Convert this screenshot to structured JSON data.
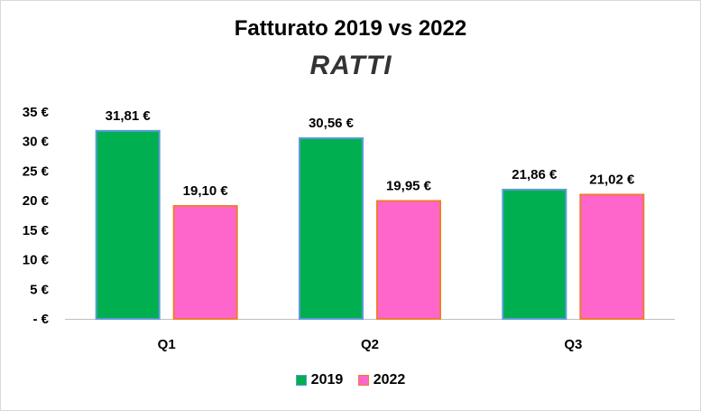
{
  "chart_data": {
    "type": "bar",
    "title": "Fatturato  2019 vs 2022",
    "logo_text": "RATTI",
    "categories": [
      "Q1",
      "Q2",
      "Q3"
    ],
    "series": [
      {
        "name": "2019",
        "values": [
          31.81,
          30.56,
          21.86
        ],
        "labels": [
          "31,81 €",
          "30,56 €",
          "21,86 €"
        ],
        "color": "#00b050",
        "border": "#5b9bd5"
      },
      {
        "name": "2022",
        "values": [
          19.1,
          19.95,
          21.02
        ],
        "labels": [
          "19,10 €",
          "19,95 €",
          "21,02 €"
        ],
        "color": "#ff66cc",
        "border": "#ed7d31"
      }
    ],
    "ylim": [
      0,
      35
    ],
    "yticks": [
      0,
      5,
      10,
      15,
      20,
      25,
      30,
      35
    ],
    "ytick_labels": [
      "- €",
      "5 €",
      "10 €",
      "15 €",
      "20 €",
      "25 €",
      "30 €",
      "35 €"
    ],
    "grid": false,
    "legend_position": "bottom",
    "xlabel": "",
    "ylabel": ""
  }
}
